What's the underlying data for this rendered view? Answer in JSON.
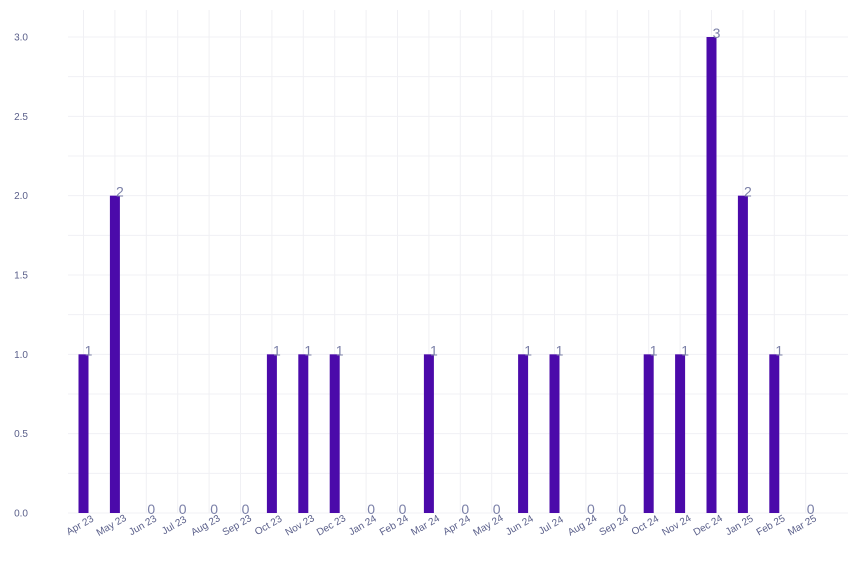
{
  "chart_data": {
    "type": "bar",
    "title": "",
    "xlabel": "",
    "ylabel": "",
    "categories": [
      "Apr 23",
      "May 23",
      "Jun 23",
      "Jul 23",
      "Aug 23",
      "Sep 23",
      "Oct 23",
      "Nov 23",
      "Dec 23",
      "Jan 24",
      "Feb 24",
      "Mar 24",
      "Apr 24",
      "May 24",
      "Jun 24",
      "Jul 24",
      "Aug 24",
      "Sep 24",
      "Oct 24",
      "Nov 24",
      "Dec 24",
      "Jan 25",
      "Feb 25",
      "Mar 25"
    ],
    "values": [
      1,
      2,
      0,
      0,
      0,
      0,
      1,
      1,
      1,
      0,
      0,
      1,
      0,
      0,
      1,
      1,
      0,
      0,
      1,
      1,
      3,
      2,
      1,
      0
    ],
    "data_labels": [
      "1",
      "2",
      "0",
      "0",
      "0",
      "0",
      "1",
      "1",
      "1",
      "0",
      "0",
      "1",
      "0",
      "0",
      "1",
      "1",
      "0",
      "0",
      "1",
      "1",
      "3",
      "2",
      "1",
      "0"
    ],
    "ylim": [
      0,
      3
    ],
    "yticks": [
      0,
      0.5,
      1,
      1.5,
      2,
      2.5,
      3
    ],
    "ytick_labels": [
      "0.0",
      "0.5",
      "1.0",
      "1.5",
      "2.0",
      "2.5",
      "3.0"
    ],
    "grid": true,
    "bar_color": "#4b0aaa",
    "label_color": "#7b80a8",
    "tick_color": "#5a5f8a"
  }
}
